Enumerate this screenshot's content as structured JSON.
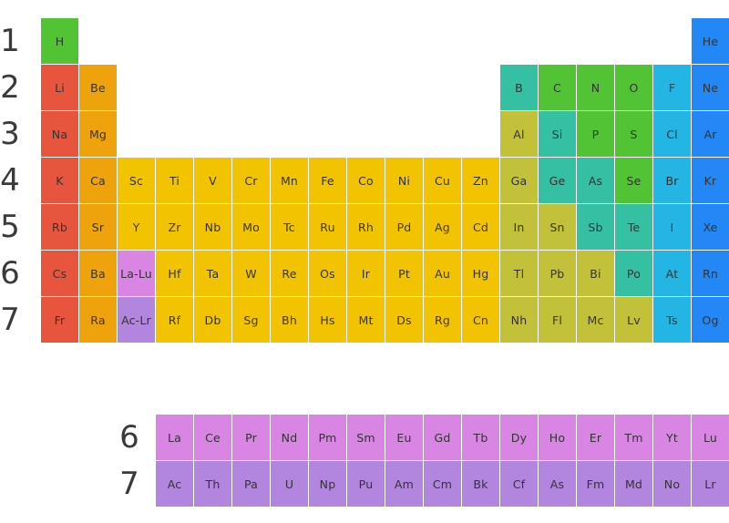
{
  "colors": {
    "nonmetal": "#52c334",
    "alkali": "#e8553f",
    "alkaline": "#eea20b",
    "transition": "#f2c300",
    "posttransition": "#c3c03a",
    "metalloid": "#35bfa3",
    "halogen": "#23b5e4",
    "noble": "#2387f5",
    "lanthanide": "#d885e3",
    "actinide": "#b285de"
  },
  "periods": [
    "1",
    "2",
    "3",
    "4",
    "5",
    "6",
    "7"
  ],
  "series_periods": [
    "6",
    "7"
  ],
  "main_rows": [
    [
      {
        "s": "H",
        "g": 1,
        "t": "nonmetal"
      },
      {
        "s": "He",
        "g": 18,
        "t": "noble"
      }
    ],
    [
      {
        "s": "Li",
        "g": 1,
        "t": "alkali"
      },
      {
        "s": "Be",
        "g": 2,
        "t": "alkaline"
      },
      {
        "s": "B",
        "g": 13,
        "t": "metalloid"
      },
      {
        "s": "C",
        "g": 14,
        "t": "nonmetal"
      },
      {
        "s": "N",
        "g": 15,
        "t": "nonmetal"
      },
      {
        "s": "O",
        "g": 16,
        "t": "nonmetal"
      },
      {
        "s": "F",
        "g": 17,
        "t": "halogen"
      },
      {
        "s": "Ne",
        "g": 18,
        "t": "noble"
      }
    ],
    [
      {
        "s": "Na",
        "g": 1,
        "t": "alkali"
      },
      {
        "s": "Mg",
        "g": 2,
        "t": "alkaline"
      },
      {
        "s": "Al",
        "g": 13,
        "t": "posttransition"
      },
      {
        "s": "Si",
        "g": 14,
        "t": "metalloid"
      },
      {
        "s": "P",
        "g": 15,
        "t": "nonmetal"
      },
      {
        "s": "S",
        "g": 16,
        "t": "nonmetal"
      },
      {
        "s": "Cl",
        "g": 17,
        "t": "halogen"
      },
      {
        "s": "Ar",
        "g": 18,
        "t": "noble"
      }
    ],
    [
      {
        "s": "K",
        "g": 1,
        "t": "alkali"
      },
      {
        "s": "Ca",
        "g": 2,
        "t": "alkaline"
      },
      {
        "s": "Sc",
        "g": 3,
        "t": "transition"
      },
      {
        "s": "Ti",
        "g": 4,
        "t": "transition"
      },
      {
        "s": "V",
        "g": 5,
        "t": "transition"
      },
      {
        "s": "Cr",
        "g": 6,
        "t": "transition"
      },
      {
        "s": "Mn",
        "g": 7,
        "t": "transition"
      },
      {
        "s": "Fe",
        "g": 8,
        "t": "transition"
      },
      {
        "s": "Co",
        "g": 9,
        "t": "transition"
      },
      {
        "s": "Ni",
        "g": 10,
        "t": "transition"
      },
      {
        "s": "Cu",
        "g": 11,
        "t": "transition"
      },
      {
        "s": "Zn",
        "g": 12,
        "t": "transition"
      },
      {
        "s": "Ga",
        "g": 13,
        "t": "posttransition"
      },
      {
        "s": "Ge",
        "g": 14,
        "t": "metalloid"
      },
      {
        "s": "As",
        "g": 15,
        "t": "metalloid"
      },
      {
        "s": "Se",
        "g": 16,
        "t": "nonmetal"
      },
      {
        "s": "Br",
        "g": 17,
        "t": "halogen"
      },
      {
        "s": "Kr",
        "g": 18,
        "t": "noble"
      }
    ],
    [
      {
        "s": "Rb",
        "g": 1,
        "t": "alkali"
      },
      {
        "s": "Sr",
        "g": 2,
        "t": "alkaline"
      },
      {
        "s": "Y",
        "g": 3,
        "t": "transition"
      },
      {
        "s": "Zr",
        "g": 4,
        "t": "transition"
      },
      {
        "s": "Nb",
        "g": 5,
        "t": "transition"
      },
      {
        "s": "Mo",
        "g": 6,
        "t": "transition"
      },
      {
        "s": "Tc",
        "g": 7,
        "t": "transition"
      },
      {
        "s": "Ru",
        "g": 8,
        "t": "transition"
      },
      {
        "s": "Rh",
        "g": 9,
        "t": "transition"
      },
      {
        "s": "Pd",
        "g": 10,
        "t": "transition"
      },
      {
        "s": "Ag",
        "g": 11,
        "t": "transition"
      },
      {
        "s": "Cd",
        "g": 12,
        "t": "transition"
      },
      {
        "s": "In",
        "g": 13,
        "t": "posttransition"
      },
      {
        "s": "Sn",
        "g": 14,
        "t": "posttransition"
      },
      {
        "s": "Sb",
        "g": 15,
        "t": "metalloid"
      },
      {
        "s": "Te",
        "g": 16,
        "t": "metalloid"
      },
      {
        "s": "I",
        "g": 17,
        "t": "halogen"
      },
      {
        "s": "Xe",
        "g": 18,
        "t": "noble"
      }
    ],
    [
      {
        "s": "Cs",
        "g": 1,
        "t": "alkali"
      },
      {
        "s": "Ba",
        "g": 2,
        "t": "alkaline"
      },
      {
        "s": "La-Lu",
        "g": 3,
        "t": "lanthanide"
      },
      {
        "s": "Hf",
        "g": 4,
        "t": "transition"
      },
      {
        "s": "Ta",
        "g": 5,
        "t": "transition"
      },
      {
        "s": "W",
        "g": 6,
        "t": "transition"
      },
      {
        "s": "Re",
        "g": 7,
        "t": "transition"
      },
      {
        "s": "Os",
        "g": 8,
        "t": "transition"
      },
      {
        "s": "Ir",
        "g": 9,
        "t": "transition"
      },
      {
        "s": "Pt",
        "g": 10,
        "t": "transition"
      },
      {
        "s": "Au",
        "g": 11,
        "t": "transition"
      },
      {
        "s": "Hg",
        "g": 12,
        "t": "transition"
      },
      {
        "s": "Tl",
        "g": 13,
        "t": "posttransition"
      },
      {
        "s": "Pb",
        "g": 14,
        "t": "posttransition"
      },
      {
        "s": "Bi",
        "g": 15,
        "t": "posttransition"
      },
      {
        "s": "Po",
        "g": 16,
        "t": "metalloid"
      },
      {
        "s": "At",
        "g": 17,
        "t": "halogen"
      },
      {
        "s": "Rn",
        "g": 18,
        "t": "noble"
      }
    ],
    [
      {
        "s": "Fr",
        "g": 1,
        "t": "alkali"
      },
      {
        "s": "Ra",
        "g": 2,
        "t": "alkaline"
      },
      {
        "s": "Ac-Lr",
        "g": 3,
        "t": "actinide"
      },
      {
        "s": "Rf",
        "g": 4,
        "t": "transition"
      },
      {
        "s": "Db",
        "g": 5,
        "t": "transition"
      },
      {
        "s": "Sg",
        "g": 6,
        "t": "transition"
      },
      {
        "s": "Bh",
        "g": 7,
        "t": "transition"
      },
      {
        "s": "Hs",
        "g": 8,
        "t": "transition"
      },
      {
        "s": "Mt",
        "g": 9,
        "t": "transition"
      },
      {
        "s": "Ds",
        "g": 10,
        "t": "transition"
      },
      {
        "s": "Rg",
        "g": 11,
        "t": "transition"
      },
      {
        "s": "Cn",
        "g": 12,
        "t": "transition"
      },
      {
        "s": "Nh",
        "g": 13,
        "t": "posttransition"
      },
      {
        "s": "Fl",
        "g": 14,
        "t": "posttransition"
      },
      {
        "s": "Mc",
        "g": 15,
        "t": "posttransition"
      },
      {
        "s": "Lv",
        "g": 16,
        "t": "posttransition"
      },
      {
        "s": "Ts",
        "g": 17,
        "t": "halogen"
      },
      {
        "s": "Og",
        "g": 18,
        "t": "noble"
      }
    ]
  ],
  "lanthanides": [
    "La",
    "Ce",
    "Pr",
    "Nd",
    "Pm",
    "Sm",
    "Eu",
    "Gd",
    "Tb",
    "Dy",
    "Ho",
    "Er",
    "Tm",
    "Yt",
    "Lu"
  ],
  "actinides": [
    "Ac",
    "Th",
    "Pa",
    "U",
    "Np",
    "Pu",
    "Am",
    "Cm",
    "Bk",
    "Cf",
    "As",
    "Fm",
    "Md",
    "No",
    "Lr"
  ]
}
